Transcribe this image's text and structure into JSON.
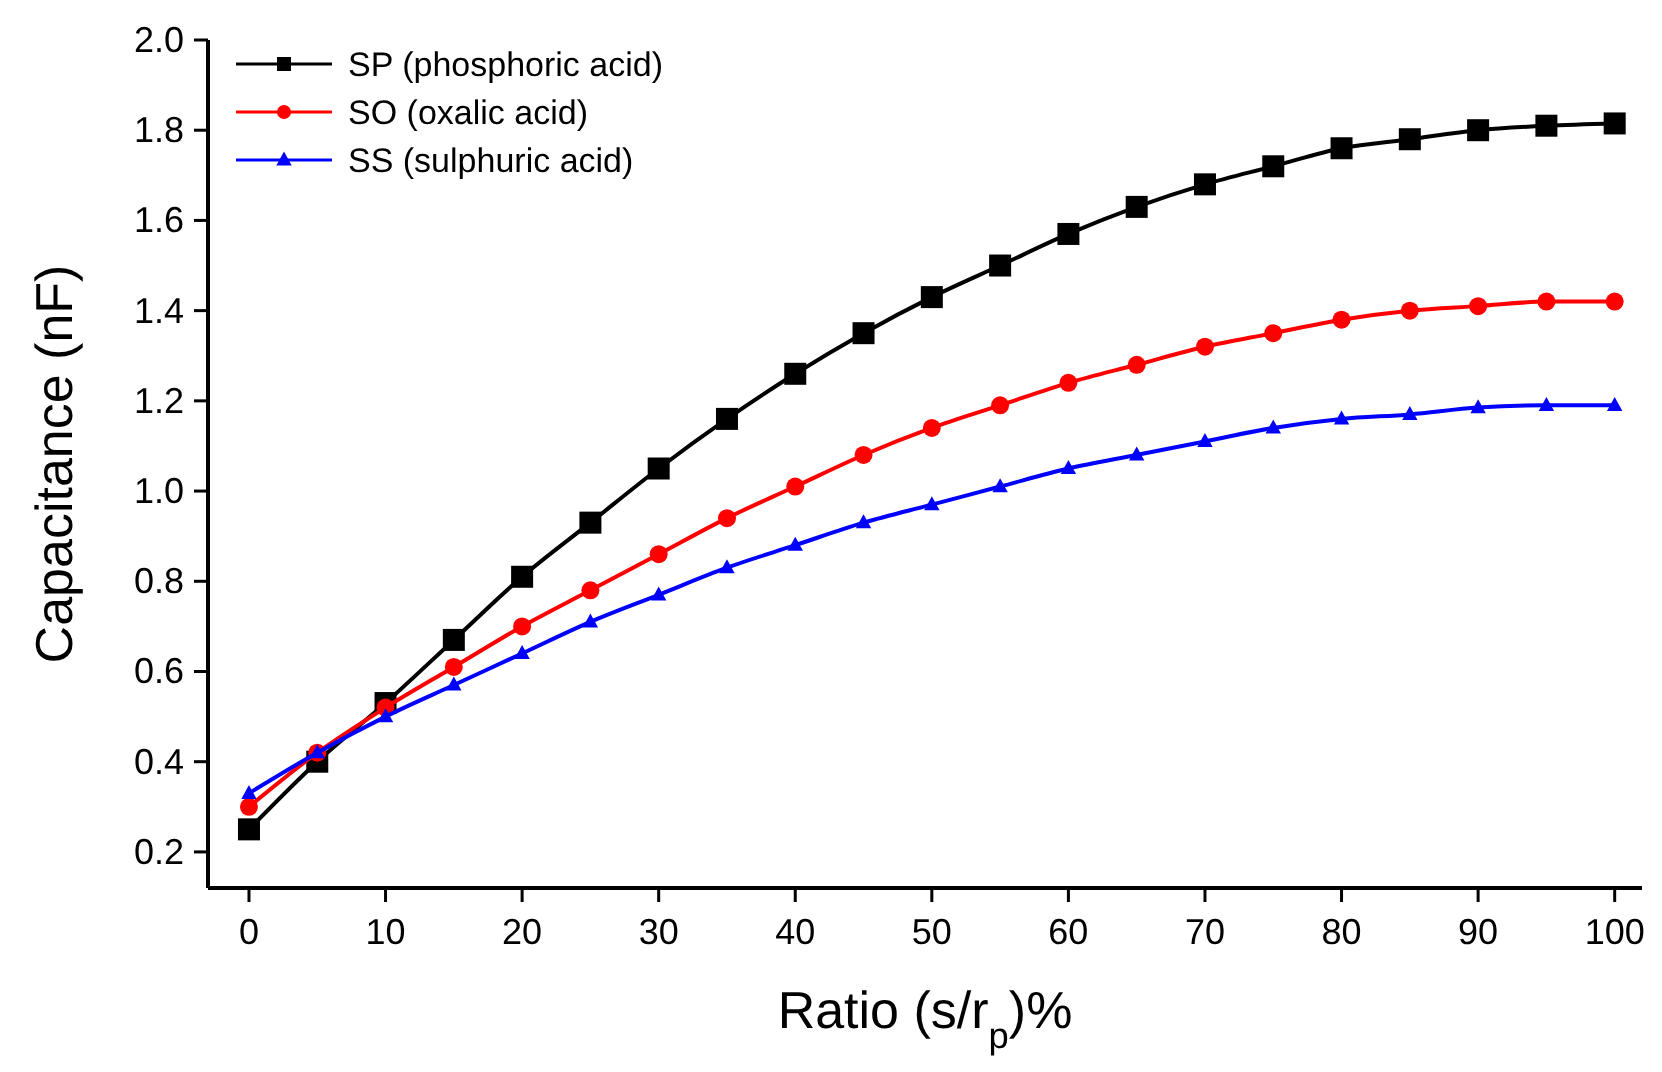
{
  "chart_data": {
    "type": "line",
    "xlabel": "Ratio (s/r$_{p}$)%",
    "ylabel": "Capacitance (nF)",
    "x": [
      0,
      5,
      10,
      15,
      20,
      25,
      30,
      35,
      40,
      45,
      50,
      55,
      60,
      65,
      70,
      75,
      80,
      85,
      90,
      95,
      100
    ],
    "series": [
      {
        "name": "SP (phosphoric acid)",
        "color": "#000000",
        "marker": "square",
        "values": [
          0.25,
          0.4,
          0.53,
          0.67,
          0.81,
          0.93,
          1.05,
          1.16,
          1.26,
          1.35,
          1.43,
          1.5,
          1.57,
          1.63,
          1.68,
          1.72,
          1.76,
          1.78,
          1.8,
          1.81,
          1.815
        ]
      },
      {
        "name": "SO (oxalic acid)",
        "color": "#ff0000",
        "marker": "circle",
        "values": [
          0.3,
          0.42,
          0.52,
          0.61,
          0.7,
          0.78,
          0.86,
          0.94,
          1.01,
          1.08,
          1.14,
          1.19,
          1.24,
          1.28,
          1.32,
          1.35,
          1.38,
          1.4,
          1.41,
          1.42,
          1.42
        ]
      },
      {
        "name": "SS (sulphuric acid)",
        "color": "#0000ff",
        "marker": "triangle",
        "values": [
          0.33,
          0.42,
          0.5,
          0.57,
          0.64,
          0.71,
          0.77,
          0.83,
          0.88,
          0.93,
          0.97,
          1.01,
          1.05,
          1.08,
          1.11,
          1.14,
          1.16,
          1.17,
          1.185,
          1.19,
          1.19
        ]
      }
    ],
    "xlim": [
      -3,
      102
    ],
    "xticks": [
      0,
      10,
      20,
      30,
      40,
      50,
      60,
      70,
      80,
      90,
      100
    ],
    "ylim": [
      0.12,
      2.0
    ],
    "yticks": [
      {
        "value": 0.2,
        "label": "0.2"
      },
      {
        "value": 0.4,
        "label": "0.4"
      },
      {
        "value": 0.6,
        "label": "0.6"
      },
      {
        "value": 0.8,
        "label": "0.8"
      },
      {
        "value": 1.0,
        "label": "1.0"
      },
      {
        "value": 1.2,
        "label": "1.2"
      },
      {
        "value": 1.4,
        "label": "1.4"
      },
      {
        "value": 1.6,
        "label": "1.6"
      },
      {
        "value": 1.8,
        "label": "1.8"
      },
      {
        "value": 2.0,
        "label": "2.0"
      }
    ],
    "grid": false,
    "legend": "top left",
    "line_style": "solid"
  }
}
